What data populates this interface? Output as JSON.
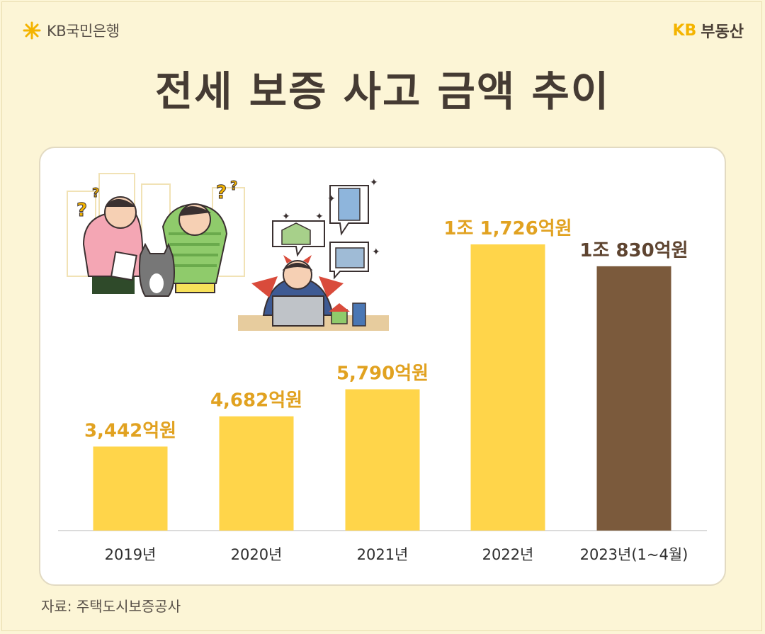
{
  "header": {
    "left_logo_text": "KB국민은행",
    "right_logo_kb": "KB",
    "right_logo_text": "부동산"
  },
  "title": "전세 보증 사고 금액 추이",
  "source": "자료: 주택도시보증공사",
  "colors": {
    "background": "#FCF5D6",
    "bar_yellow": "#FFD54A",
    "bar_brown": "#7B5A3C",
    "label_gold": "#E1A221",
    "label_brown": "#5E4430",
    "title": "#453B33"
  },
  "chart_data": {
    "type": "bar",
    "title": "전세 보증 사고 금액 추이",
    "categories": [
      "2019년",
      "2020년",
      "2021년",
      "2022년",
      "2023년(1~4월)"
    ],
    "values": [
      3442,
      4682,
      5790,
      11726,
      10830
    ],
    "value_labels": [
      "3,442억원",
      "4,682억원",
      "5,790억원",
      "1조 1,726억원",
      "1조 830억원"
    ],
    "bar_colors": [
      "#FFD54A",
      "#FFD54A",
      "#FFD54A",
      "#FFD54A",
      "#7B5A3C"
    ],
    "label_colors": [
      "#E1A221",
      "#E1A221",
      "#E1A221",
      "#E1A221",
      "#5E4430"
    ],
    "xlabel": "",
    "ylabel": "",
    "ylim": [
      0,
      11726
    ],
    "grid": false,
    "legend": "none"
  }
}
